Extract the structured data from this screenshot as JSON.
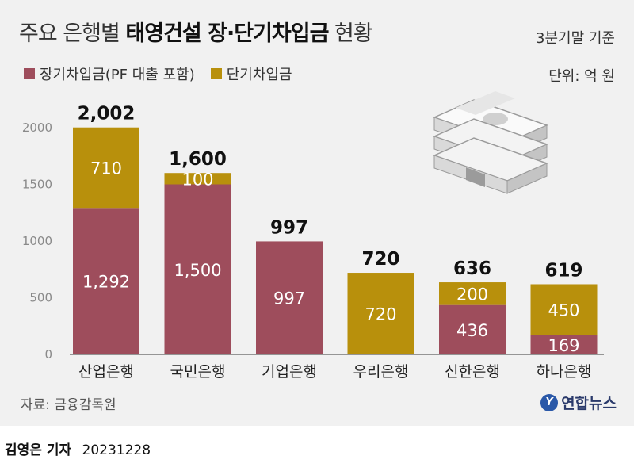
{
  "header": {
    "title_prefix": "주요 은행별",
    "title_strong": "태영건설 장·단기차입금",
    "title_suffix": "현황",
    "basis": "3분기말 기준",
    "unit": "단위: 억 원"
  },
  "colors": {
    "long": "#9e4d5c",
    "short": "#b8900c"
  },
  "footer": {
    "source": "자료: 금융감독원",
    "logo": "연합뉴스",
    "reporter": "김영은 기자",
    "date": "20231228"
  },
  "chart_data": {
    "type": "bar",
    "stacked": true,
    "categories": [
      "산업은행",
      "국민은행",
      "기업은행",
      "우리은행",
      "신한은행",
      "하나은행"
    ],
    "series": [
      {
        "name": "장기차입금(PF 대출 포함)",
        "values": [
          1292,
          1500,
          997,
          0,
          436,
          169
        ]
      },
      {
        "name": "단기차입금",
        "values": [
          710,
          100,
          0,
          720,
          200,
          450
        ]
      }
    ],
    "totals": [
      2002,
      1600,
      997,
      720,
      636,
      619
    ],
    "total_labels": [
      "2,002",
      "1,600",
      "997",
      "720",
      "636",
      "619"
    ],
    "segment_labels": [
      [
        "1,292",
        "1,500",
        "997",
        "",
        "436",
        "169"
      ],
      [
        "710",
        "100",
        "",
        "720",
        "200",
        "450"
      ]
    ],
    "yticks": [
      0,
      500,
      1000,
      1500,
      2000
    ],
    "ylim": [
      0,
      2000
    ],
    "grid": false,
    "legend": "top-left"
  }
}
